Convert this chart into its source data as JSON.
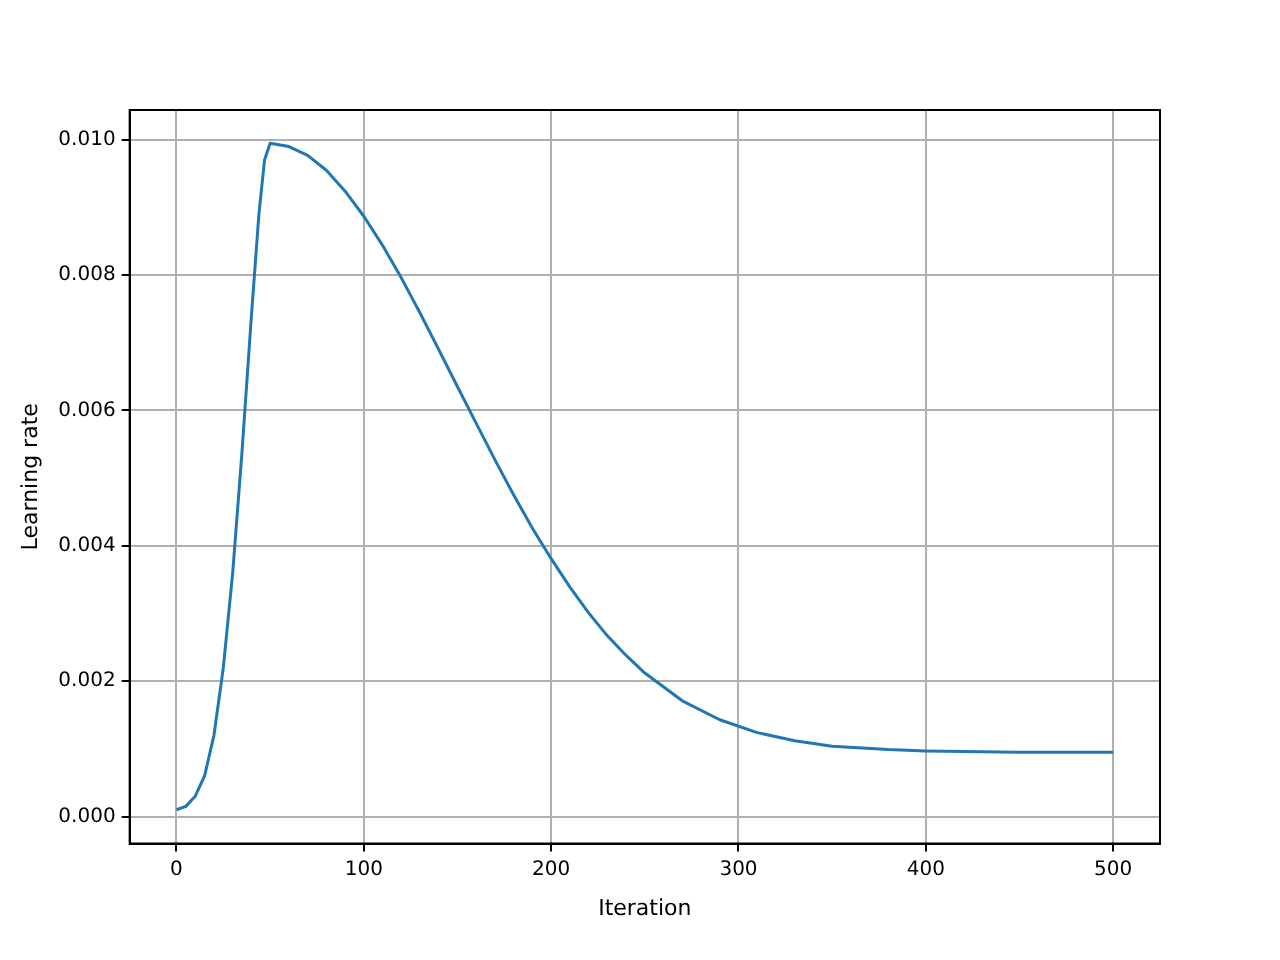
{
  "chart_data": {
    "type": "line",
    "xlabel": "Iteration",
    "ylabel": "Learning rate",
    "xlim": [
      -25,
      525
    ],
    "xticks": [
      0,
      100,
      200,
      300,
      400,
      500
    ],
    "ylim": [
      -0.0004,
      0.01044
    ],
    "yticks": [
      {
        "value": 0,
        "label": "0.000"
      },
      {
        "value": 0.002,
        "label": "0.002"
      },
      {
        "value": 0.004,
        "label": "0.004"
      },
      {
        "value": 0.006,
        "label": "0.006"
      },
      {
        "value": 0.008,
        "label": "0.008"
      },
      {
        "value": 0.01,
        "label": "0.010"
      }
    ],
    "grid": true,
    "legend": false,
    "marker": "none",
    "line_style": "solid",
    "series": [
      {
        "color": "#1f77b4",
        "x": [
          0,
          5,
          10,
          15,
          20,
          25,
          30,
          35,
          40,
          44,
          47,
          50,
          60,
          70,
          80,
          90,
          100,
          110,
          120,
          130,
          140,
          150,
          160,
          170,
          180,
          190,
          200,
          210,
          220,
          230,
          240,
          250,
          270,
          290,
          310,
          330,
          350,
          380,
          400,
          450,
          500
        ],
        "values": [
          0.0001,
          0.00015,
          0.0003,
          0.0006,
          0.0012,
          0.0022,
          0.0036,
          0.0054,
          0.0074,
          0.0089,
          0.0097,
          0.00995,
          0.0099,
          0.00977,
          0.00955,
          0.00924,
          0.00887,
          0.00844,
          0.00796,
          0.00744,
          0.0069,
          0.00635,
          0.00581,
          0.00527,
          0.00475,
          0.00426,
          0.00381,
          0.00339,
          0.00301,
          0.00267,
          0.00238,
          0.00212,
          0.00171,
          0.00143,
          0.00124,
          0.00112,
          0.00104,
          0.00099,
          0.00097,
          0.00095,
          0.00095
        ]
      }
    ]
  }
}
